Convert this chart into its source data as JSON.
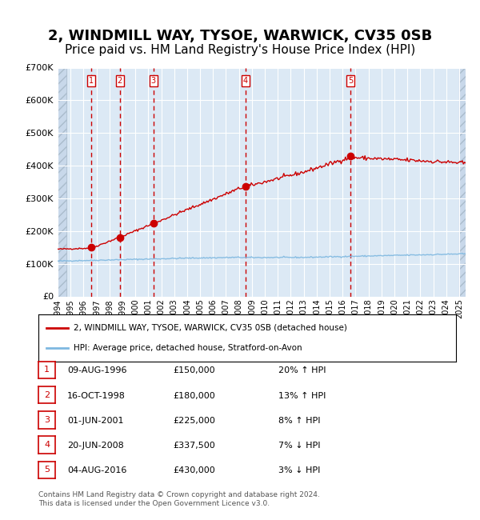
{
  "title": "2, WINDMILL WAY, TYSOE, WARWICK, CV35 0SB",
  "subtitle": "Price paid vs. HM Land Registry's House Price Index (HPI)",
  "title_fontsize": 13,
  "subtitle_fontsize": 11,
  "background_color": "#dce9f5",
  "plot_bg_color": "#dce9f5",
  "hatch_color": "#c0ccdd",
  "grid_color": "#ffffff",
  "red_line_color": "#cc0000",
  "blue_line_color": "#7eb8e0",
  "sale_marker_color": "#cc0000",
  "dashed_line_color": "#cc0000",
  "ylim": [
    0,
    700000
  ],
  "yticks": [
    0,
    100000,
    200000,
    300000,
    400000,
    500000,
    600000,
    700000
  ],
  "ytick_labels": [
    "£0",
    "£100K",
    "£200K",
    "£300K",
    "£400K",
    "£500K",
    "£600K",
    "£700K"
  ],
  "xstart": 1994.0,
  "xend": 2025.5,
  "sale_events": [
    {
      "num": 1,
      "year": 1996.6,
      "price": 150000,
      "date": "09-AUG-1996",
      "hpi_pct": "20%",
      "hpi_dir": "↑"
    },
    {
      "num": 2,
      "year": 1998.8,
      "price": 180000,
      "date": "16-OCT-1998",
      "hpi_pct": "13%",
      "hpi_dir": "↑"
    },
    {
      "num": 3,
      "year": 2001.4,
      "price": 225000,
      "date": "01-JUN-2001",
      "hpi_pct": "8%",
      "hpi_dir": "↑"
    },
    {
      "num": 4,
      "year": 2008.5,
      "price": 337500,
      "date": "20-JUN-2008",
      "hpi_pct": "7%",
      "hpi_dir": "↓"
    },
    {
      "num": 5,
      "year": 2016.6,
      "price": 430000,
      "date": "04-AUG-2016",
      "hpi_pct": "3%",
      "hpi_dir": "↓"
    }
  ],
  "legend_entries": [
    "2, WINDMILL WAY, TYSOE, WARWICK, CV35 0SB (detached house)",
    "HPI: Average price, detached house, Stratford-on-Avon"
  ],
  "footer_text": "Contains HM Land Registry data © Crown copyright and database right 2024.\nThis data is licensed under the Open Government Licence v3.0.",
  "table_rows": [
    {
      "num": 1,
      "date": "09-AUG-1996",
      "price": "£150,000",
      "hpi": "20% ↑ HPI"
    },
    {
      "num": 2,
      "date": "16-OCT-1998",
      "price": "£180,000",
      "hpi": "13% ↑ HPI"
    },
    {
      "num": 3,
      "date": "01-JUN-2001",
      "price": "£225,000",
      "hpi": "8% ↑ HPI"
    },
    {
      "num": 4,
      "date": "20-JUN-2008",
      "price": "£337,500",
      "hpi": "7% ↓ HPI"
    },
    {
      "num": 5,
      "date": "04-AUG-2016",
      "price": "£430,000",
      "hpi": "3% ↓ HPI"
    }
  ]
}
